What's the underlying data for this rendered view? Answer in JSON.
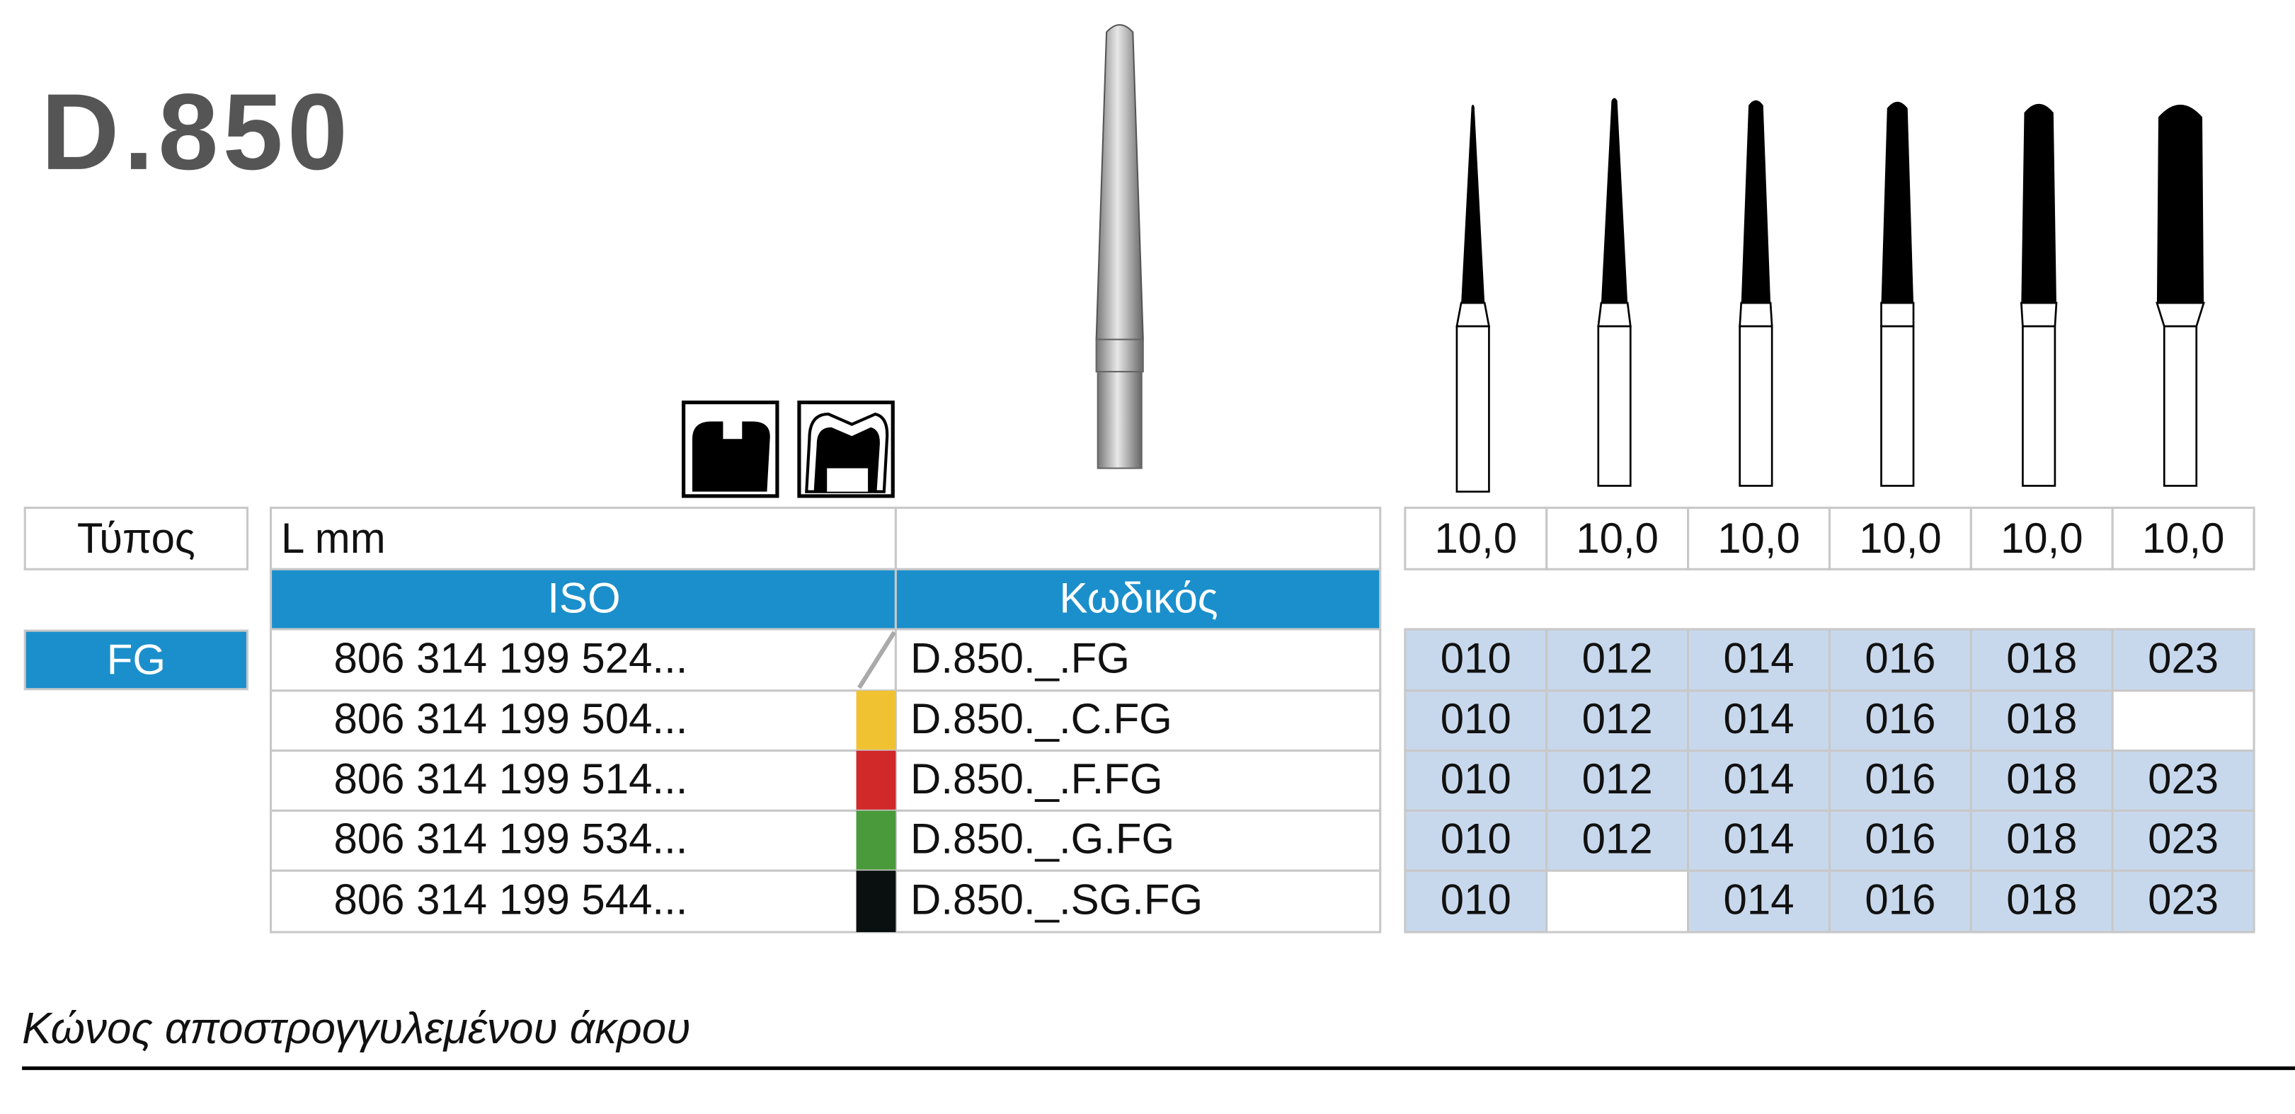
{
  "header": {
    "title": "D.850"
  },
  "table": {
    "type_label": "Τύπος",
    "length_label": "L mm",
    "iso_header": "ISO",
    "code_header": "Κωδικός",
    "type_value": "FG",
    "lengths": [
      "10,0",
      "10,0",
      "10,0",
      "10,0",
      "10,0",
      "10,0"
    ],
    "rows": [
      {
        "iso": "806 314 199 524...",
        "code": "D.850._.FG",
        "color": null,
        "sizes": [
          "010",
          "012",
          "014",
          "016",
          "018",
          "023"
        ]
      },
      {
        "iso": "806 314 199 504...",
        "code": "D.850._.C.FG",
        "color": "#f0c232",
        "sizes": [
          "010",
          "012",
          "014",
          "016",
          "018",
          null
        ]
      },
      {
        "iso": "806 314 199 514...",
        "code": "D.850._.F.FG",
        "color": "#d1282a",
        "sizes": [
          "010",
          "012",
          "014",
          "016",
          "018",
          "023"
        ]
      },
      {
        "iso": "806 314 199 534...",
        "code": "D.850._.G.FG",
        "color": "#4a9a3c",
        "sizes": [
          "010",
          "012",
          "014",
          "016",
          "018",
          "023"
        ]
      },
      {
        "iso": "806 314 199 544...",
        "code": "D.850._.SG.FG",
        "color": "#0a0f10",
        "sizes": [
          "010",
          null,
          "014",
          "016",
          "018",
          "023"
        ]
      }
    ]
  },
  "caption": "Κώνος αποστρογγυλεμένου άκρου"
}
